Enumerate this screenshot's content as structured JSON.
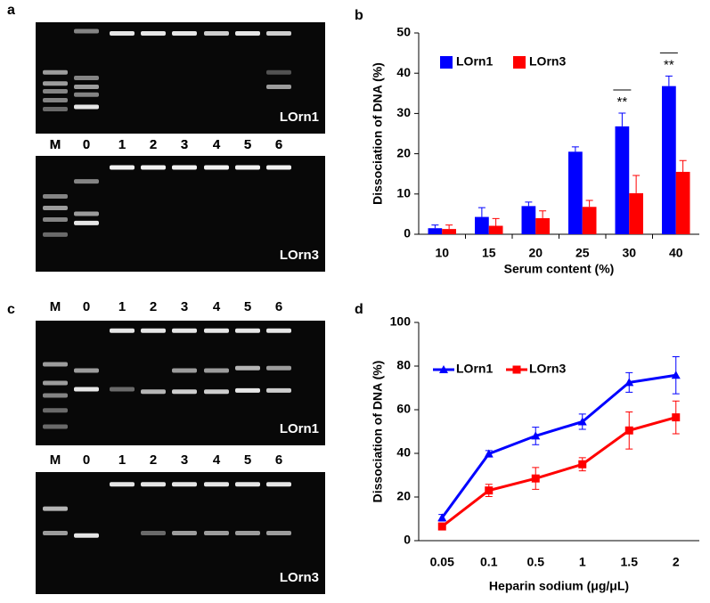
{
  "panel_labels": [
    "a",
    "b",
    "c",
    "d"
  ],
  "gels": [
    {
      "lanes": [
        "M",
        "0",
        "1",
        "2",
        "3",
        "4",
        "5",
        "6"
      ],
      "label": "LOrn1"
    },
    {
      "lanes": [
        "M",
        "0",
        "1",
        "2",
        "3",
        "4",
        "5",
        "6"
      ],
      "label": "LOrn3"
    },
    {
      "lanes": [
        "M",
        "0",
        "1",
        "2",
        "3",
        "4",
        "5",
        "6"
      ],
      "label": "LOrn1"
    },
    {
      "lanes": [
        "M",
        "0",
        "1",
        "2",
        "3",
        "4",
        "5",
        "6"
      ],
      "label": "LOrn3"
    }
  ],
  "chart_data": [
    {
      "type": "bar",
      "y_label": "Dissociation of DNA (%)",
      "x_label": "Serum content (%)",
      "categories": [
        "10",
        "15",
        "20",
        "25",
        "30",
        "40"
      ],
      "series": [
        {
          "name": "LOrn1",
          "color": "#0000ff",
          "values": [
            1.5,
            4.3,
            7,
            20.5,
            26.8,
            36.8
          ],
          "errors": [
            0.8,
            2.3,
            1,
            1.2,
            3.3,
            2.5
          ]
        },
        {
          "name": "LOrn3",
          "color": "#ff0000",
          "values": [
            1.3,
            2.1,
            4,
            6.8,
            10.2,
            15.5
          ],
          "errors": [
            1,
            1.8,
            1.8,
            1.6,
            4.4,
            2.8
          ]
        }
      ],
      "ylim": [
        0,
        50
      ],
      "yticks": [
        0,
        10,
        20,
        30,
        40,
        50
      ],
      "legend": "upper left",
      "annotations": [
        {
          "text": "**",
          "category": "30"
        },
        {
          "text": "**",
          "category": "40"
        }
      ]
    },
    {
      "type": "line",
      "y_label": "Dissociation of DNA (%)",
      "x_label": "Heparin sodium (μg/μL)",
      "categories": [
        "0.05",
        "0.1",
        "0.5",
        "1",
        "1.5",
        "2"
      ],
      "series": [
        {
          "name": "LOrn1",
          "color": "#0000ff",
          "marker": "triangle",
          "values": [
            10.5,
            39.8,
            48,
            54.5,
            72.5,
            75.8
          ],
          "errors": [
            1.5,
            1.5,
            4,
            3.5,
            4.5,
            8.5
          ]
        },
        {
          "name": "LOrn3",
          "color": "#ff0000",
          "marker": "square",
          "values": [
            6.5,
            23,
            28.5,
            35,
            50.5,
            56.5
          ],
          "errors": [
            1.5,
            2.8,
            5,
            3,
            8.5,
            7.5
          ]
        }
      ],
      "ylim": [
        0,
        100
      ],
      "yticks": [
        0,
        20,
        40,
        60,
        80,
        100
      ],
      "legend": "upper left"
    }
  ]
}
